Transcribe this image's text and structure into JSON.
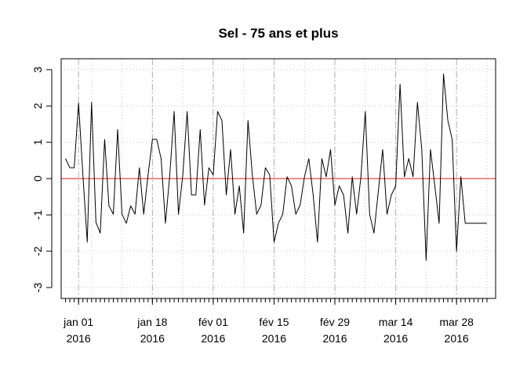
{
  "chart_data": {
    "type": "line",
    "title": "Sel - 75 ans et plus",
    "xlabel": "",
    "ylabel": "",
    "ylim": [
      -3.3,
      3.3
    ],
    "yticks": [
      -3,
      -2,
      -1,
      0,
      1,
      2,
      3
    ],
    "grid": true,
    "x_start": "2015-12-28",
    "x_end": "2016-04-06",
    "x_tick_labels": [
      {
        "date": "2016-01-01",
        "line1": "jan 01",
        "line2": "2016"
      },
      {
        "date": "2016-01-18",
        "line1": "jan 18",
        "line2": "2016"
      },
      {
        "date": "2016-02-01",
        "line1": "fév 01",
        "line2": "2016"
      },
      {
        "date": "2016-02-15",
        "line1": "fév 15",
        "line2": "2016"
      },
      {
        "date": "2016-02-29",
        "line1": "fév 29",
        "line2": "2016"
      },
      {
        "date": "2016-03-14",
        "line1": "mar 14",
        "line2": "2016"
      },
      {
        "date": "2016-03-28",
        "line1": "mar 28",
        "line2": "2016"
      }
    ],
    "reference_line": {
      "y": 0,
      "color": "#e31a1c"
    },
    "series": [
      {
        "color": "#000000",
        "x": [
          "2015-12-29",
          "2015-12-30",
          "2015-12-31",
          "2016-01-01",
          "2016-01-02",
          "2016-01-03",
          "2016-01-04",
          "2016-01-05",
          "2016-01-06",
          "2016-01-07",
          "2016-01-08",
          "2016-01-09",
          "2016-01-10",
          "2016-01-11",
          "2016-01-12",
          "2016-01-13",
          "2016-01-14",
          "2016-01-15",
          "2016-01-16",
          "2016-01-17",
          "2016-01-18",
          "2016-01-19",
          "2016-01-20",
          "2016-01-21",
          "2016-01-22",
          "2016-01-23",
          "2016-01-24",
          "2016-01-25",
          "2016-01-26",
          "2016-01-27",
          "2016-01-28",
          "2016-01-29",
          "2016-01-30",
          "2016-01-31",
          "2016-02-01",
          "2016-02-02",
          "2016-02-03",
          "2016-02-04",
          "2016-02-05",
          "2016-02-06",
          "2016-02-07",
          "2016-02-08",
          "2016-02-09",
          "2016-02-10",
          "2016-02-11",
          "2016-02-12",
          "2016-02-13",
          "2016-02-14",
          "2016-02-15",
          "2016-02-16",
          "2016-02-17",
          "2016-02-18",
          "2016-02-19",
          "2016-02-20",
          "2016-02-21",
          "2016-02-22",
          "2016-02-23",
          "2016-02-24",
          "2016-02-25",
          "2016-02-26",
          "2016-02-27",
          "2016-02-28",
          "2016-02-29",
          "2016-03-01",
          "2016-03-02",
          "2016-03-03",
          "2016-03-04",
          "2016-03-05",
          "2016-03-06",
          "2016-03-07",
          "2016-03-08",
          "2016-03-09",
          "2016-03-11",
          "2016-03-12",
          "2016-03-13",
          "2016-03-14",
          "2016-03-15",
          "2016-03-16",
          "2016-03-17",
          "2016-03-18",
          "2016-03-19",
          "2016-03-20",
          "2016-03-21",
          "2016-03-22",
          "2016-03-23",
          "2016-03-24",
          "2016-03-25",
          "2016-03-26",
          "2016-03-27",
          "2016-03-28",
          "2016-03-29",
          "2016-03-30",
          "2016-03-31",
          "2016-04-01",
          "2016-04-02",
          "2016-04-03",
          "2016-04-04"
        ],
        "y": [
          0.55,
          0.3,
          0.3,
          2.08,
          0.1,
          -1.75,
          2.1,
          -1.2,
          -1.5,
          1.08,
          -0.75,
          -0.98,
          1.35,
          -0.98,
          -1.23,
          -0.75,
          -0.98,
          0.3,
          -0.98,
          0.1,
          1.08,
          1.08,
          0.55,
          -1.23,
          0.1,
          1.85,
          -0.98,
          0.1,
          1.85,
          -0.45,
          -0.45,
          1.35,
          -0.73,
          0.3,
          0.1,
          1.85,
          1.6,
          -0.45,
          0.8,
          -0.98,
          -0.2,
          -1.5,
          1.6,
          0.1,
          -0.98,
          -0.73,
          0.3,
          0.1,
          -1.75,
          -1.23,
          -0.98,
          0.05,
          -0.2,
          -0.98,
          -0.73,
          0.05,
          0.55,
          -0.45,
          -1.75,
          0.55,
          0.05,
          0.8,
          -0.73,
          -0.2,
          -0.45,
          -1.5,
          0.05,
          -0.98,
          0.05,
          1.85,
          -0.98,
          -1.5,
          0.8,
          -0.98,
          -0.45,
          -0.2,
          2.6,
          0.05,
          0.55,
          0.05,
          2.1,
          0.8,
          -2.25,
          0.8,
          -0.2,
          -1.23,
          2.88,
          1.6,
          1.08,
          -2.0,
          0.05,
          -1.23,
          -1.23,
          -1.23,
          -1.23,
          -1.23,
          -1.23
        ]
      }
    ]
  }
}
